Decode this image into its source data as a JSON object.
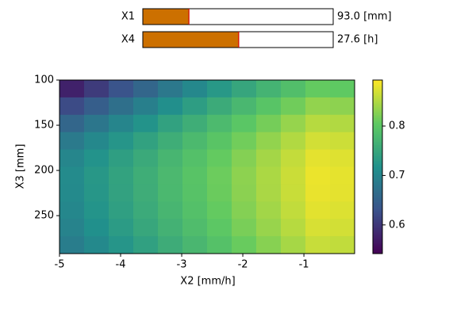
{
  "sliders": [
    {
      "label": "X1",
      "value": 93.0,
      "value_label": "93.0 [mm]",
      "range": [
        0,
        384
      ]
    },
    {
      "label": "X4",
      "value": 27.6,
      "value_label": "27.6 [h]",
      "range": [
        0,
        54.8
      ]
    }
  ],
  "chart_data": {
    "type": "heatmap",
    "xlabel": "X2 [mm/h]",
    "ylabel": "X3 [mm]",
    "xlim": [
      -5,
      -0.17
    ],
    "ylim": [
      292,
      100
    ],
    "xticks": [
      -5,
      -4,
      -3,
      -2,
      -1
    ],
    "yticks": [
      100,
      150,
      200,
      250
    ],
    "colormap": "viridis",
    "clim": [
      0.542,
      0.893
    ],
    "cticks": [
      0.6,
      0.7,
      0.8
    ],
    "z": [
      [
        0.577,
        0.605,
        0.632,
        0.657,
        0.682,
        0.705,
        0.728,
        0.749,
        0.77,
        0.788,
        0.808,
        0.805
      ],
      [
        0.622,
        0.647,
        0.67,
        0.693,
        0.715,
        0.736,
        0.757,
        0.777,
        0.797,
        0.815,
        0.834,
        0.831
      ],
      [
        0.658,
        0.68,
        0.701,
        0.721,
        0.742,
        0.761,
        0.781,
        0.8,
        0.818,
        0.836,
        0.854,
        0.851
      ],
      [
        0.685,
        0.705,
        0.724,
        0.742,
        0.761,
        0.78,
        0.798,
        0.816,
        0.834,
        0.851,
        0.869,
        0.866
      ],
      [
        0.702,
        0.72,
        0.738,
        0.755,
        0.774,
        0.791,
        0.808,
        0.826,
        0.844,
        0.861,
        0.879,
        0.876
      ],
      [
        0.709,
        0.727,
        0.744,
        0.761,
        0.779,
        0.796,
        0.813,
        0.831,
        0.848,
        0.865,
        0.883,
        0.88
      ],
      [
        0.708,
        0.726,
        0.743,
        0.76,
        0.778,
        0.795,
        0.812,
        0.83,
        0.847,
        0.864,
        0.882,
        0.879
      ],
      [
        0.704,
        0.722,
        0.739,
        0.756,
        0.774,
        0.791,
        0.808,
        0.826,
        0.843,
        0.86,
        0.878,
        0.875
      ],
      [
        0.698,
        0.716,
        0.733,
        0.75,
        0.768,
        0.785,
        0.802,
        0.82,
        0.837,
        0.854,
        0.872,
        0.869
      ],
      [
        0.689,
        0.707,
        0.724,
        0.741,
        0.759,
        0.776,
        0.793,
        0.811,
        0.828,
        0.845,
        0.863,
        0.86
      ]
    ]
  }
}
